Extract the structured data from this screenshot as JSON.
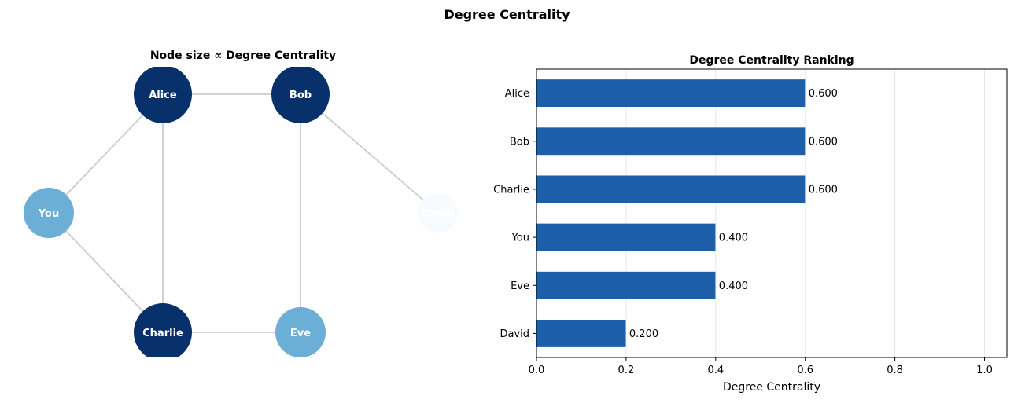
{
  "figure": {
    "title": "Degree Centrality"
  },
  "chart_data": [
    {
      "type": "network",
      "title": "Node size ∝ Degree Centrality",
      "nodes": [
        {
          "name": "Alice",
          "centrality": 0.6,
          "color": "#08306b"
        },
        {
          "name": "Bob",
          "centrality": 0.6,
          "color": "#08306b"
        },
        {
          "name": "You",
          "centrality": 0.4,
          "color": "#6baed6"
        },
        {
          "name": "David",
          "centrality": 0.2,
          "color": "#f7fbff"
        },
        {
          "name": "Charlie",
          "centrality": 0.6,
          "color": "#08306b"
        },
        {
          "name": "Eve",
          "centrality": 0.4,
          "color": "#6baed6"
        }
      ],
      "edges": [
        [
          "Alice",
          "Bob"
        ],
        [
          "Alice",
          "You"
        ],
        [
          "Alice",
          "Charlie"
        ],
        [
          "Bob",
          "Eve"
        ],
        [
          "Bob",
          "David"
        ],
        [
          "You",
          "Charlie"
        ],
        [
          "Charlie",
          "Eve"
        ]
      ],
      "edge_color": "#cccccc"
    },
    {
      "type": "bar",
      "orientation": "horizontal",
      "title": "Degree Centrality Ranking",
      "categories": [
        "Alice",
        "Bob",
        "Charlie",
        "You",
        "Eve",
        "David"
      ],
      "values": [
        0.6,
        0.6,
        0.6,
        0.4,
        0.4,
        0.2
      ],
      "value_labels": [
        "0.600",
        "0.600",
        "0.600",
        "0.400",
        "0.400",
        "0.200"
      ],
      "xlabel": "Degree Centrality",
      "ylabel": "",
      "xlim": [
        0,
        1.05
      ],
      "xticks": [
        0.0,
        0.2,
        0.4,
        0.6,
        0.8,
        1.0
      ],
      "xtick_labels": [
        "0.0",
        "0.2",
        "0.4",
        "0.6",
        "0.8",
        "1.0"
      ],
      "grid": "x",
      "bar_color": "#1c5fa8"
    }
  ]
}
